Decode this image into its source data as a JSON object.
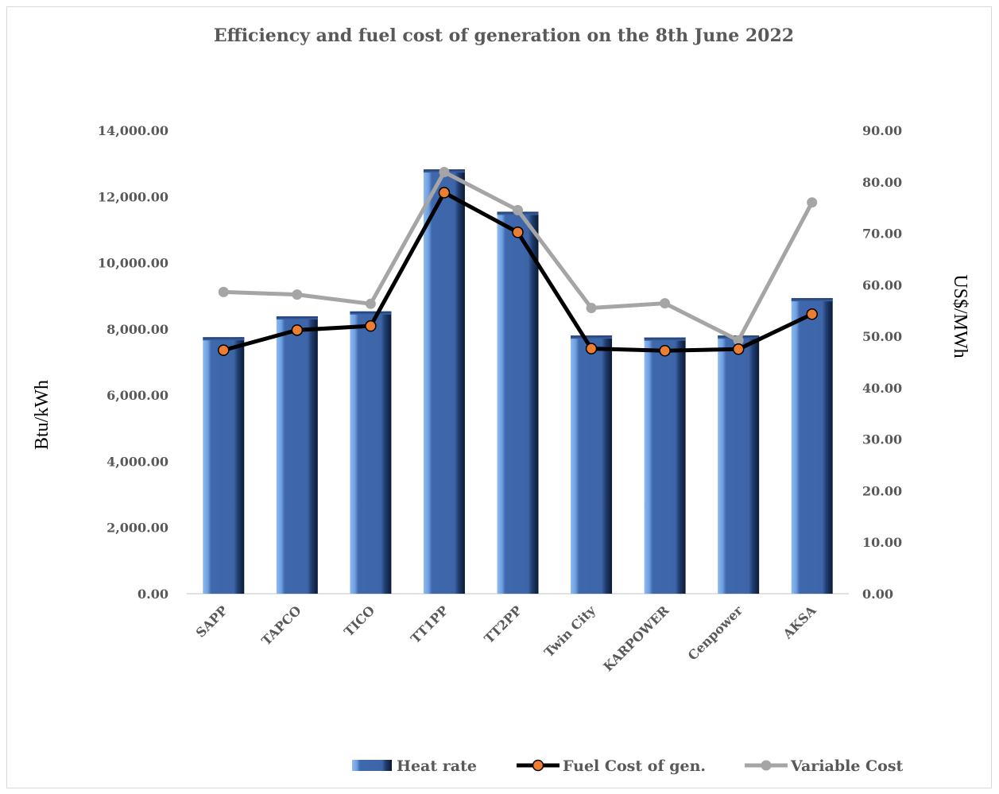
{
  "chart_data": {
    "type": "bar",
    "title": "Efficiency and fuel cost of generation on the 8th June 2022",
    "categories": [
      "SAPP",
      "TAPCO",
      "TICO",
      "TT1PP",
      "TT2PP",
      "Twin City",
      "KARPOWER",
      "Cenpower",
      "AKSA"
    ],
    "ylabel": "Btu/kWh",
    "y2label": "US$/MWh",
    "ylim": [
      0,
      14000
    ],
    "y2lim": [
      0,
      90
    ],
    "yticks": [
      "0.00",
      "2,000.00",
      "4,000.00",
      "6,000.00",
      "8,000.00",
      "10,000.00",
      "12,000.00",
      "14,000.00"
    ],
    "y2ticks": [
      "0.00",
      "10.00",
      "20.00",
      "30.00",
      "40.00",
      "50.00",
      "60.00",
      "70.00",
      "80.00",
      "90.00"
    ],
    "grid": false,
    "legend_position": "bottom-right",
    "series": [
      {
        "name": "Heat rate",
        "type": "bar",
        "axis": "left",
        "color": "#3d65a8",
        "values": [
          7750,
          8380,
          8530,
          12820,
          11540,
          7800,
          7740,
          7800,
          8930
        ]
      },
      {
        "name": "Fuel Cost of gen.",
        "type": "line",
        "axis": "right",
        "color": "#000000",
        "marker_color": "#ed7d31",
        "values": [
          47.3,
          51.2,
          52.0,
          77.9,
          70.2,
          47.6,
          47.2,
          47.5,
          54.3
        ]
      },
      {
        "name": "Variable Cost",
        "type": "line",
        "axis": "right",
        "color": "#a5a5a5",
        "marker_color": "#a5a5a5",
        "values": [
          58.6,
          58.1,
          56.3,
          81.9,
          74.5,
          55.5,
          56.4,
          49.2,
          76.0
        ]
      }
    ]
  }
}
